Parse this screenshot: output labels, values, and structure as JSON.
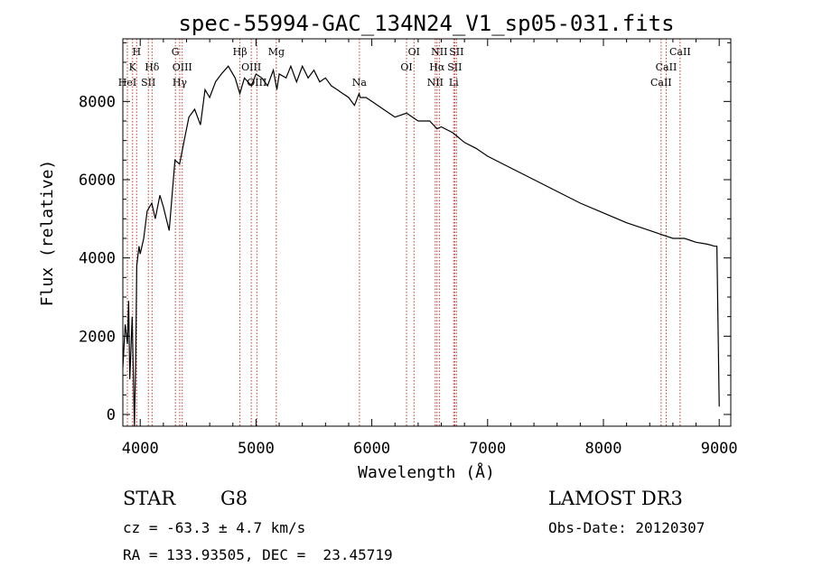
{
  "chart_data": {
    "type": "line",
    "title": "spec-55994-GAC_134N24_V1_sp05-031.fits",
    "xlabel": "Wavelength (Å)",
    "ylabel": "Flux (relative)",
    "xlim": [
      3850,
      9100
    ],
    "ylim": [
      -300,
      9600
    ],
    "x_ticks": [
      4000,
      5000,
      6000,
      7000,
      8000,
      9000
    ],
    "y_ticks": [
      0,
      2000,
      4000,
      6000,
      8000
    ],
    "series": [
      {
        "name": "flux",
        "x": [
          3850,
          3870,
          3890,
          3900,
          3910,
          3930,
          3950,
          3960,
          3970,
          3990,
          4000,
          4030,
          4060,
          4100,
          4130,
          4170,
          4200,
          4250,
          4300,
          4340,
          4380,
          4420,
          4470,
          4520,
          4560,
          4600,
          4650,
          4700,
          4760,
          4820,
          4860,
          4900,
          4960,
          5000,
          5050,
          5100,
          5150,
          5180,
          5200,
          5260,
          5300,
          5350,
          5400,
          5450,
          5500,
          5550,
          5600,
          5650,
          5700,
          5750,
          5800,
          5850,
          5890,
          5900,
          5950,
          6000,
          6100,
          6200,
          6300,
          6400,
          6500,
          6563,
          6600,
          6700,
          6800,
          6900,
          7000,
          7200,
          7400,
          7600,
          7800,
          8000,
          8200,
          8400,
          8500,
          8600,
          8700,
          8800,
          8900,
          8960,
          8980,
          9000
        ],
        "values": [
          1200,
          2300,
          1800,
          2900,
          900,
          2500,
          -300,
          1200,
          3800,
          4300,
          4100,
          4500,
          5200,
          5400,
          5000,
          5600,
          5300,
          4700,
          6500,
          6400,
          7000,
          7600,
          7800,
          7400,
          8300,
          8100,
          8500,
          8700,
          8900,
          8600,
          8200,
          8600,
          8400,
          8700,
          8600,
          8400,
          8800,
          8300,
          8700,
          8600,
          8900,
          8500,
          8900,
          8600,
          8800,
          8500,
          8600,
          8400,
          8300,
          8200,
          8100,
          7900,
          8200,
          8100,
          8100,
          8000,
          7800,
          7600,
          7700,
          7500,
          7500,
          7300,
          7350,
          7200,
          6950,
          6800,
          6600,
          6300,
          6000,
          5700,
          5400,
          5150,
          4900,
          4700,
          4600,
          4500,
          4500,
          4400,
          4350,
          4300,
          4300,
          200
        ]
      }
    ],
    "line_positions": [
      3889,
      3934,
      3969,
      4070,
      4102,
      4304,
      4341,
      4363,
      4861,
      4959,
      5007,
      5175,
      5893,
      6300,
      6364,
      6548,
      6563,
      6583,
      6707,
      6716,
      6731,
      8498,
      8542,
      8662
    ],
    "line_labels": [
      {
        "label": "H",
        "wavelength": 3969,
        "row": 1
      },
      {
        "label": "K",
        "wavelength": 3934,
        "row": 2
      },
      {
        "label": "HeI",
        "wavelength": 3889,
        "row": 3
      },
      {
        "label": "SII",
        "wavelength": 4070,
        "row": 3
      },
      {
        "label": "Hδ",
        "wavelength": 4102,
        "row": 2
      },
      {
        "label": "G",
        "wavelength": 4304,
        "row": 1
      },
      {
        "label": "OIII",
        "wavelength": 4363,
        "row": 2
      },
      {
        "label": "Hγ",
        "wavelength": 4341,
        "row": 3
      },
      {
        "label": "Hβ",
        "wavelength": 4861,
        "row": 1
      },
      {
        "label": "OIII",
        "wavelength": 4959,
        "row": 2
      },
      {
        "label": "OIII",
        "wavelength": 5007,
        "row": 3
      },
      {
        "label": "Mg",
        "wavelength": 5175,
        "row": 1
      },
      {
        "label": "Na",
        "wavelength": 5893,
        "row": 3
      },
      {
        "label": "OI",
        "wavelength": 6364,
        "row": 1
      },
      {
        "label": "OI",
        "wavelength": 6300,
        "row": 2
      },
      {
        "label": "NII",
        "wavelength": 6583,
        "row": 1
      },
      {
        "label": "Hα",
        "wavelength": 6563,
        "row": 2
      },
      {
        "label": "NII",
        "wavelength": 6548,
        "row": 3
      },
      {
        "label": "SII",
        "wavelength": 6731,
        "row": 1
      },
      {
        "label": "SII",
        "wavelength": 6716,
        "row": 2
      },
      {
        "label": "Li",
        "wavelength": 6707,
        "row": 3
      },
      {
        "label": "CaII",
        "wavelength": 8662,
        "row": 1
      },
      {
        "label": "CaII",
        "wavelength": 8542,
        "row": 2
      },
      {
        "label": "CaII",
        "wavelength": 8498,
        "row": 3
      }
    ]
  },
  "info": {
    "object_class": "STAR",
    "subclass": "G8",
    "survey": "LAMOST DR3",
    "redshift": "cz = -63.3 ± 4.7 km/s",
    "obs_date": "Obs-Date: 20120307",
    "coords": "RA = 133.93505, DEC =  23.45719"
  },
  "colors": {
    "spectrum": "#000000",
    "line_marker": "#c0392b",
    "background": "#ffffff"
  }
}
